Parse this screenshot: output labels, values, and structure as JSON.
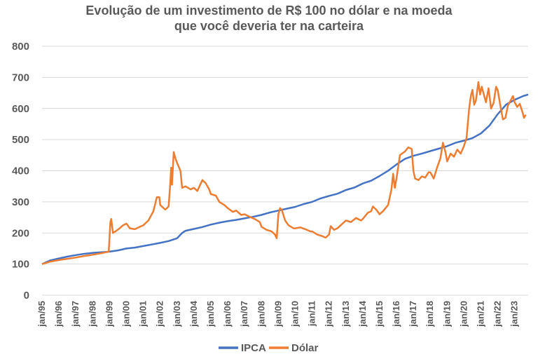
{
  "chart_data": {
    "type": "line",
    "title": [
      "Evolução de um investimento de R$ 100 no dólar e na moeda",
      "que você deveria ter na carteira"
    ],
    "xlabel": "",
    "ylabel": "",
    "ylim": [
      0,
      800
    ],
    "y_ticks": [
      "0",
      "100",
      "200",
      "300",
      "400",
      "500",
      "600",
      "700",
      "800"
    ],
    "x_ticks": [
      "jan/95",
      "jan/96",
      "jan/97",
      "jan/98",
      "jan/99",
      "jan/00",
      "jan/01",
      "jan/02",
      "jan/03",
      "jan/04",
      "jan/05",
      "jan/06",
      "jan/07",
      "jan/08",
      "jan/09",
      "jan/10",
      "jan/11",
      "jan/12",
      "jan/13",
      "jan/14",
      "jan/15",
      "jan/16",
      "jan/17",
      "jan/18",
      "jan/19",
      "jan/20",
      "jan/21",
      "jan/22",
      "jan/23"
    ],
    "grid": true,
    "legend_position": "bottom",
    "series": [
      {
        "name": "IPCA",
        "color": "#4472c4",
        "points": [
          [
            1995.0,
            100
          ],
          [
            1995.5,
            112
          ],
          [
            1996.0,
            118
          ],
          [
            1996.5,
            124
          ],
          [
            1997.0,
            129
          ],
          [
            1997.5,
            133
          ],
          [
            1998.0,
            136
          ],
          [
            1998.5,
            138
          ],
          [
            1999.0,
            140
          ],
          [
            1999.5,
            144
          ],
          [
            2000.0,
            150
          ],
          [
            2000.5,
            153
          ],
          [
            2001.0,
            158
          ],
          [
            2001.5,
            163
          ],
          [
            2002.0,
            168
          ],
          [
            2002.5,
            174
          ],
          [
            2003.0,
            183
          ],
          [
            2003.3,
            200
          ],
          [
            2003.5,
            207
          ],
          [
            2004.0,
            213
          ],
          [
            2004.5,
            219
          ],
          [
            2005.0,
            227
          ],
          [
            2005.5,
            233
          ],
          [
            2006.0,
            238
          ],
          [
            2006.5,
            242
          ],
          [
            2007.0,
            247
          ],
          [
            2007.5,
            252
          ],
          [
            2008.0,
            258
          ],
          [
            2008.5,
            266
          ],
          [
            2009.0,
            272
          ],
          [
            2009.5,
            278
          ],
          [
            2010.0,
            284
          ],
          [
            2010.5,
            293
          ],
          [
            2011.0,
            300
          ],
          [
            2011.5,
            311
          ],
          [
            2012.0,
            319
          ],
          [
            2012.5,
            326
          ],
          [
            2013.0,
            338
          ],
          [
            2013.5,
            346
          ],
          [
            2014.0,
            359
          ],
          [
            2014.5,
            368
          ],
          [
            2015.0,
            383
          ],
          [
            2015.5,
            400
          ],
          [
            2016.0,
            420
          ],
          [
            2016.5,
            438
          ],
          [
            2017.0,
            448
          ],
          [
            2017.5,
            455
          ],
          [
            2018.0,
            463
          ],
          [
            2018.5,
            471
          ],
          [
            2019.0,
            479
          ],
          [
            2019.5,
            490
          ],
          [
            2020.0,
            497
          ],
          [
            2020.5,
            505
          ],
          [
            2021.0,
            520
          ],
          [
            2021.5,
            545
          ],
          [
            2022.0,
            582
          ],
          [
            2022.5,
            613
          ],
          [
            2023.0,
            628
          ],
          [
            2023.5,
            640
          ],
          [
            2023.8,
            645
          ]
        ]
      },
      {
        "name": "Dólar",
        "color": "#ed7d31",
        "points": [
          [
            1995.0,
            100
          ],
          [
            1995.5,
            108
          ],
          [
            1996.0,
            113
          ],
          [
            1996.5,
            117
          ],
          [
            1997.0,
            121
          ],
          [
            1997.5,
            126
          ],
          [
            1998.0,
            130
          ],
          [
            1998.5,
            135
          ],
          [
            1998.95,
            140
          ],
          [
            1999.05,
            235
          ],
          [
            1999.1,
            245
          ],
          [
            1999.2,
            200
          ],
          [
            1999.35,
            205
          ],
          [
            1999.6,
            215
          ],
          [
            1999.8,
            225
          ],
          [
            2000.0,
            230
          ],
          [
            2000.2,
            215
          ],
          [
            2000.5,
            212
          ],
          [
            2000.8,
            220
          ],
          [
            2001.0,
            225
          ],
          [
            2001.3,
            240
          ],
          [
            2001.6,
            270
          ],
          [
            2001.8,
            315
          ],
          [
            2001.95,
            315
          ],
          [
            2002.0,
            290
          ],
          [
            2002.3,
            275
          ],
          [
            2002.5,
            285
          ],
          [
            2002.6,
            360
          ],
          [
            2002.65,
            410
          ],
          [
            2002.7,
            355
          ],
          [
            2002.8,
            460
          ],
          [
            2002.9,
            440
          ],
          [
            2003.0,
            425
          ],
          [
            2003.2,
            400
          ],
          [
            2003.3,
            345
          ],
          [
            2003.5,
            350
          ],
          [
            2003.8,
            340
          ],
          [
            2004.0,
            345
          ],
          [
            2004.2,
            335
          ],
          [
            2004.5,
            370
          ],
          [
            2004.7,
            360
          ],
          [
            2004.9,
            340
          ],
          [
            2005.0,
            325
          ],
          [
            2005.3,
            320
          ],
          [
            2005.5,
            300
          ],
          [
            2005.8,
            290
          ],
          [
            2006.0,
            280
          ],
          [
            2006.3,
            268
          ],
          [
            2006.5,
            272
          ],
          [
            2006.8,
            258
          ],
          [
            2007.0,
            260
          ],
          [
            2007.3,
            252
          ],
          [
            2007.6,
            245
          ],
          [
            2007.9,
            235
          ],
          [
            2008.0,
            220
          ],
          [
            2008.3,
            210
          ],
          [
            2008.6,
            205
          ],
          [
            2008.8,
            195
          ],
          [
            2008.9,
            183
          ],
          [
            2009.0,
            260
          ],
          [
            2009.1,
            280
          ],
          [
            2009.2,
            275
          ],
          [
            2009.4,
            240
          ],
          [
            2009.6,
            225
          ],
          [
            2009.9,
            215
          ],
          [
            2010.0,
            215
          ],
          [
            2010.3,
            218
          ],
          [
            2010.6,
            212
          ],
          [
            2010.9,
            205
          ],
          [
            2011.0,
            205
          ],
          [
            2011.3,
            195
          ],
          [
            2011.6,
            190
          ],
          [
            2011.8,
            185
          ],
          [
            2012.0,
            195
          ],
          [
            2012.1,
            222
          ],
          [
            2012.3,
            210
          ],
          [
            2012.5,
            215
          ],
          [
            2012.8,
            230
          ],
          [
            2013.0,
            240
          ],
          [
            2013.3,
            235
          ],
          [
            2013.6,
            248
          ],
          [
            2013.9,
            240
          ],
          [
            2014.0,
            245
          ],
          [
            2014.3,
            265
          ],
          [
            2014.5,
            270
          ],
          [
            2014.6,
            285
          ],
          [
            2014.8,
            275
          ],
          [
            2015.0,
            260
          ],
          [
            2015.2,
            270
          ],
          [
            2015.5,
            290
          ],
          [
            2015.7,
            340
          ],
          [
            2015.8,
            390
          ],
          [
            2015.9,
            345
          ],
          [
            2016.0,
            375
          ],
          [
            2016.2,
            450
          ],
          [
            2016.5,
            462
          ],
          [
            2016.7,
            475
          ],
          [
            2016.9,
            470
          ],
          [
            2017.0,
            400
          ],
          [
            2017.1,
            375
          ],
          [
            2017.3,
            370
          ],
          [
            2017.5,
            382
          ],
          [
            2017.7,
            378
          ],
          [
            2017.9,
            395
          ],
          [
            2018.0,
            395
          ],
          [
            2018.2,
            375
          ],
          [
            2018.4,
            410
          ],
          [
            2018.6,
            440
          ],
          [
            2018.75,
            490
          ],
          [
            2018.9,
            460
          ],
          [
            2019.0,
            430
          ],
          [
            2019.2,
            455
          ],
          [
            2019.4,
            445
          ],
          [
            2019.6,
            468
          ],
          [
            2019.8,
            455
          ],
          [
            2020.0,
            480
          ],
          [
            2020.15,
            505
          ],
          [
            2020.3,
            600
          ],
          [
            2020.4,
            640
          ],
          [
            2020.5,
            660
          ],
          [
            2020.6,
            612
          ],
          [
            2020.7,
            625
          ],
          [
            2020.85,
            685
          ],
          [
            2020.95,
            645
          ],
          [
            2021.05,
            670
          ],
          [
            2021.2,
            640
          ],
          [
            2021.3,
            620
          ],
          [
            2021.45,
            665
          ],
          [
            2021.6,
            600
          ],
          [
            2021.75,
            618
          ],
          [
            2021.9,
            670
          ],
          [
            2022.0,
            658
          ],
          [
            2022.15,
            610
          ],
          [
            2022.3,
            565
          ],
          [
            2022.45,
            570
          ],
          [
            2022.6,
            610
          ],
          [
            2022.75,
            625
          ],
          [
            2022.9,
            640
          ],
          [
            2023.0,
            620
          ],
          [
            2023.15,
            605
          ],
          [
            2023.3,
            615
          ],
          [
            2023.45,
            590
          ],
          [
            2023.55,
            570
          ],
          [
            2023.65,
            580
          ]
        ]
      }
    ]
  }
}
